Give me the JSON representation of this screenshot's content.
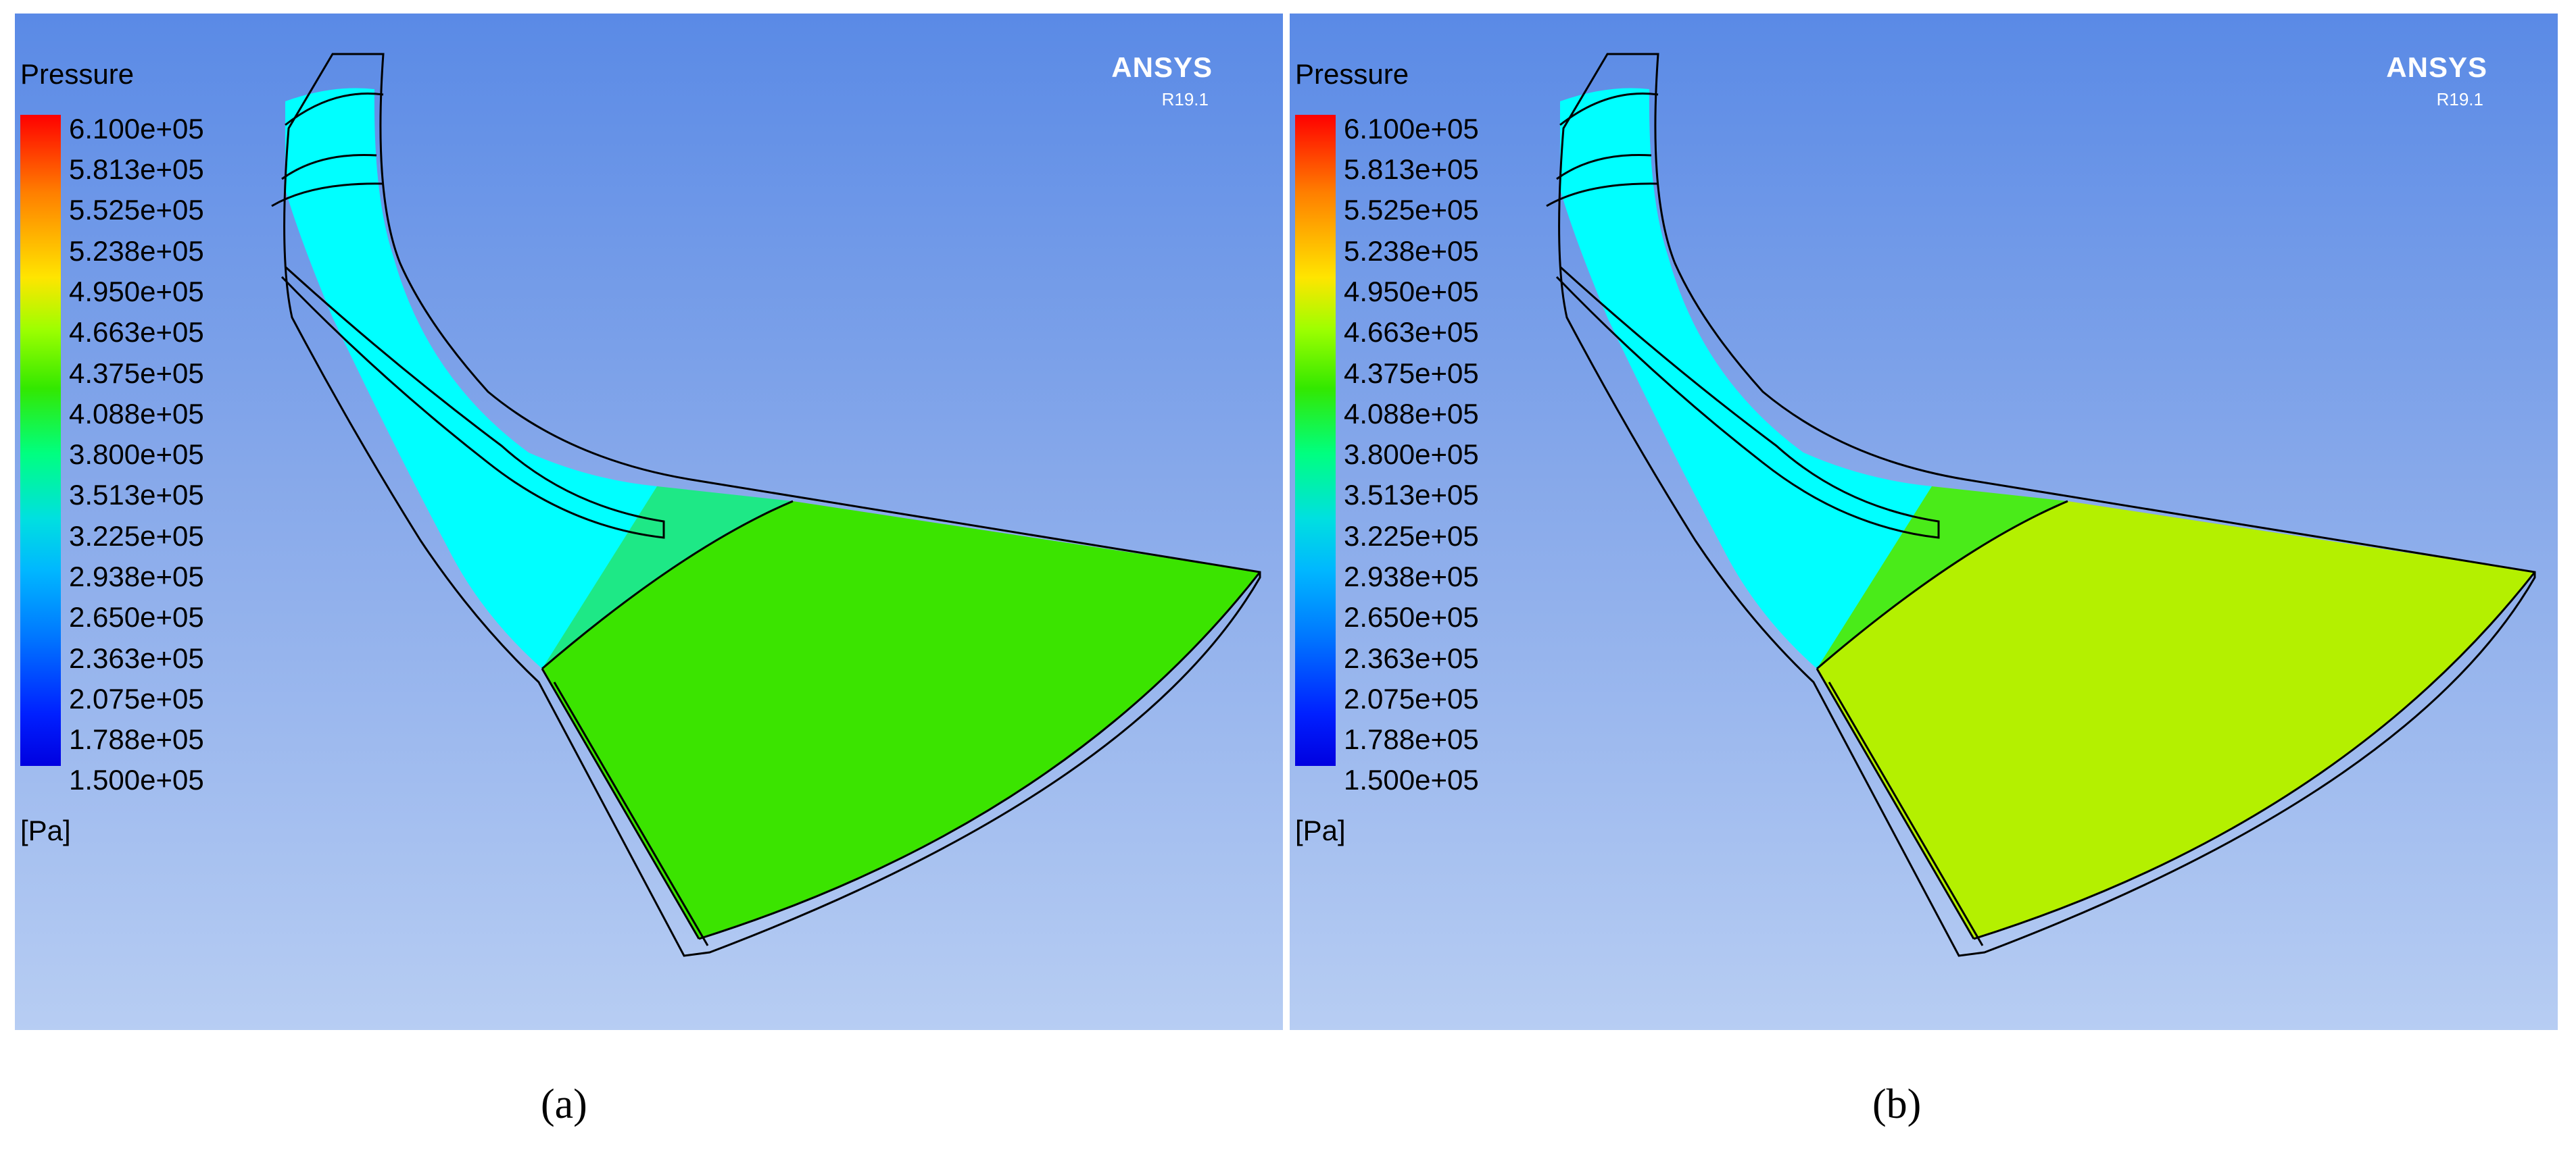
{
  "panels": [
    {
      "legend": {
        "title": "Pressure",
        "ticks": [
          "6.100e+05",
          "5.813e+05",
          "5.525e+05",
          "5.238e+05",
          "4.950e+05",
          "4.663e+05",
          "4.375e+05",
          "4.088e+05",
          "3.800e+05",
          "3.513e+05",
          "3.225e+05",
          "2.938e+05",
          "2.650e+05",
          "2.363e+05",
          "2.075e+05",
          "1.788e+05",
          "1.500e+05"
        ],
        "unit": "[Pa]"
      },
      "brand": "ANSYS",
      "version": "R19.1",
      "caption": "(a)",
      "colors": {
        "inlet": "#00ffff",
        "mid": "#1ee886",
        "outlet": "#3be400"
      }
    },
    {
      "legend": {
        "title": "Pressure",
        "ticks": [
          "6.100e+05",
          "5.813e+05",
          "5.525e+05",
          "5.238e+05",
          "4.950e+05",
          "4.663e+05",
          "4.375e+05",
          "4.088e+05",
          "3.800e+05",
          "3.513e+05",
          "3.225e+05",
          "2.938e+05",
          "2.650e+05",
          "2.363e+05",
          "2.075e+05",
          "1.788e+05",
          "1.500e+05"
        ],
        "unit": "[Pa]"
      },
      "brand": "ANSYS",
      "version": "R19.1",
      "caption": "(b)",
      "colors": {
        "inlet": "#00ffff",
        "mid": "#4aeb19",
        "outlet": "#b4f000"
      }
    }
  ]
}
